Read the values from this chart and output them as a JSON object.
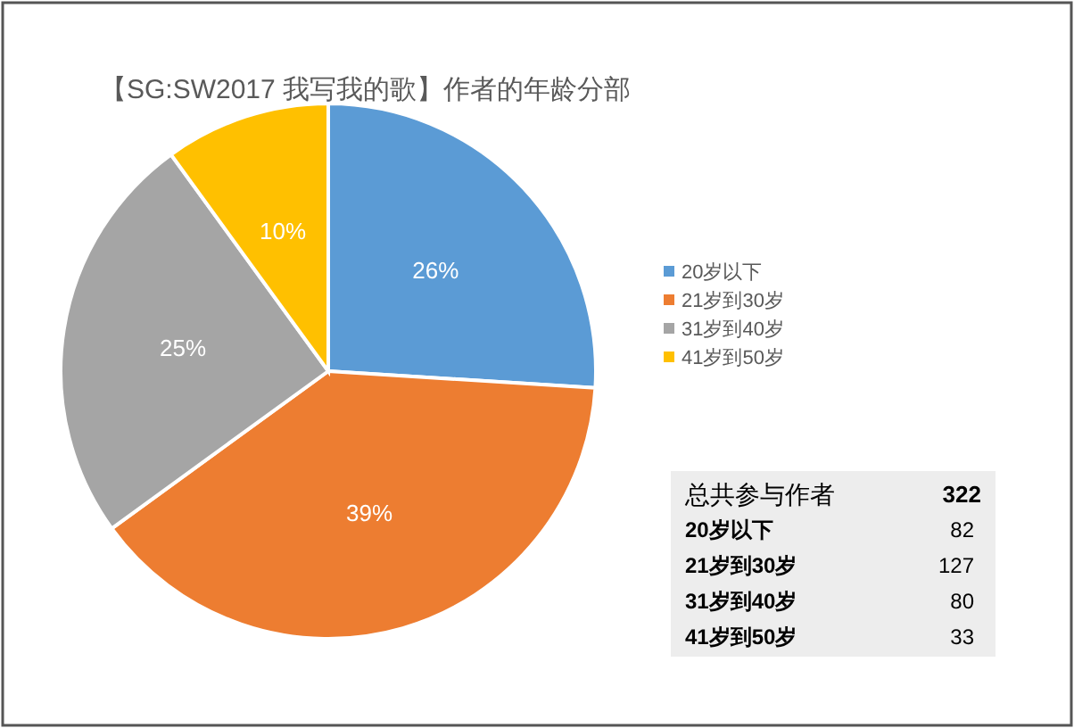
{
  "chart_data": [
    {
      "type": "pie",
      "title": "【SG:SW2017 我写我的歌】作者的年龄分部",
      "categories": [
        "20岁以下",
        "21岁到30岁",
        "31岁到40岁",
        "41岁到50岁"
      ],
      "values": [
        26,
        39,
        25,
        10
      ],
      "colors": [
        "#5b9bd5",
        "#ed7d31",
        "#a5a5a5",
        "#ffc000"
      ],
      "value_labels": [
        "26%",
        "39%",
        "25%",
        "10%"
      ],
      "legend": "right"
    },
    {
      "type": "other",
      "title": "总共参与作者",
      "categories": [
        "20岁以下",
        "21岁到30岁",
        "31岁到40岁",
        "41岁到50岁"
      ],
      "values": [
        82,
        127,
        80,
        33
      ],
      "data_labels": true,
      "totals": [
        "322"
      ]
    }
  ]
}
